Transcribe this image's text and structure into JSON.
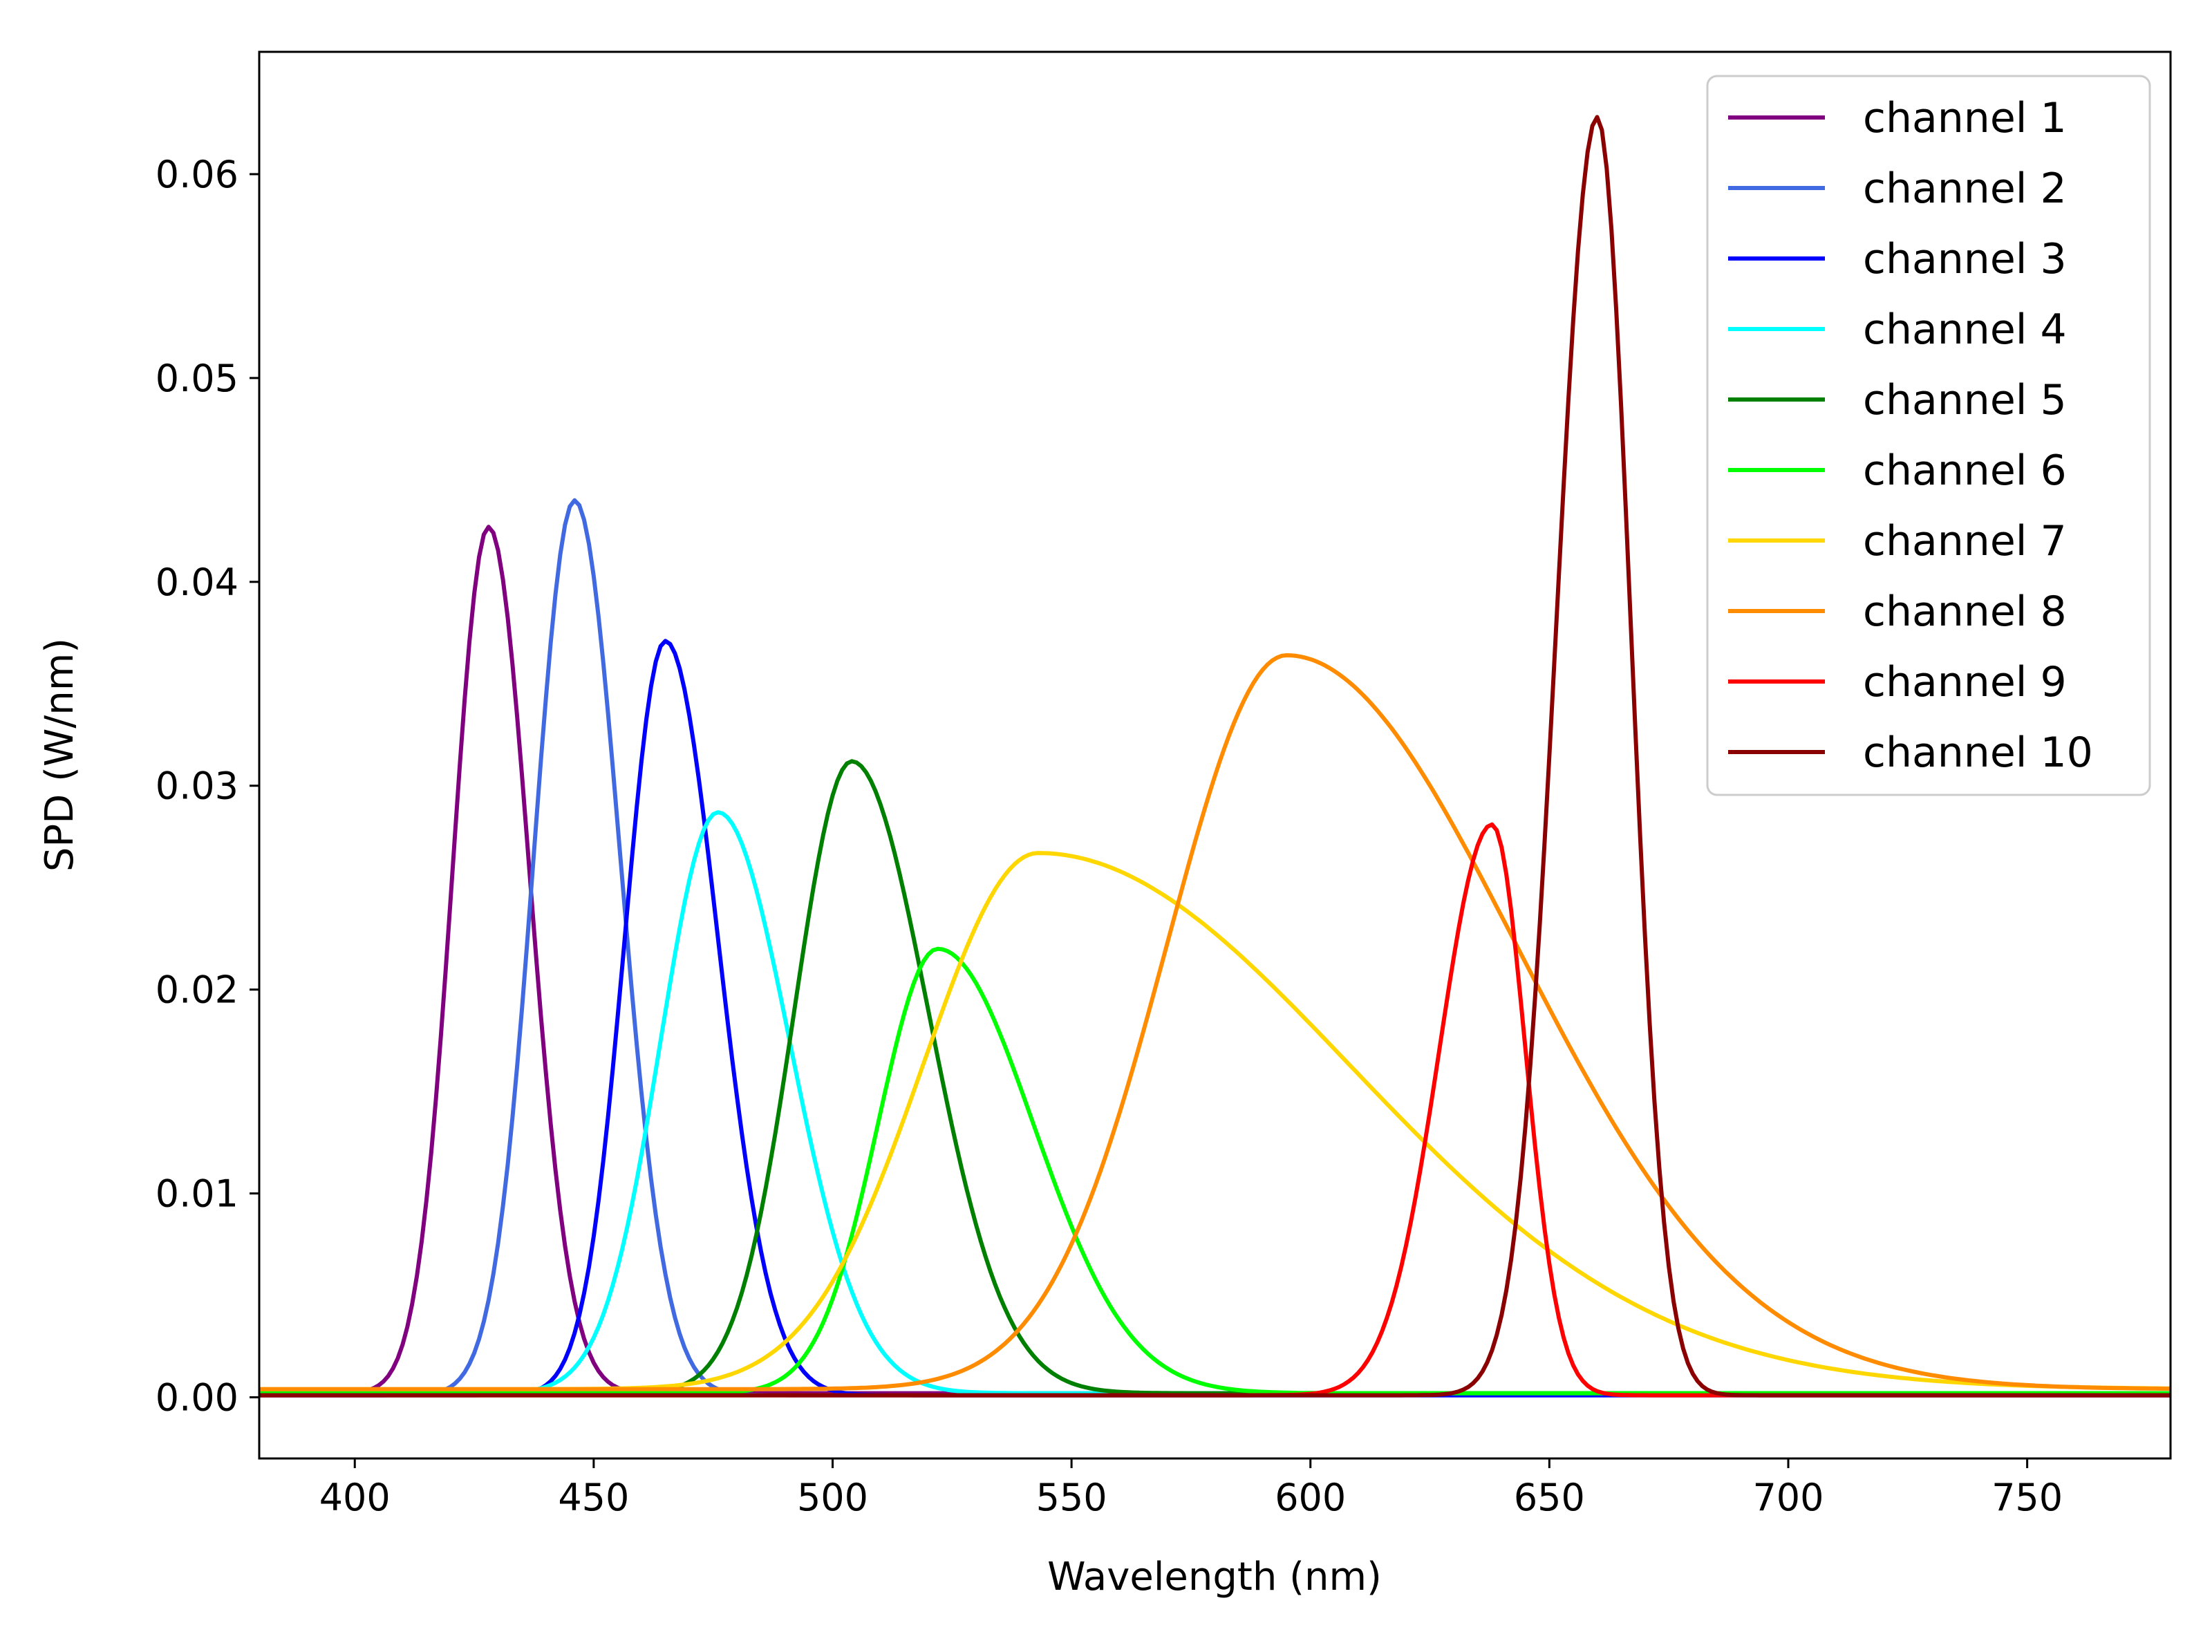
{
  "chart_data": {
    "type": "line",
    "title": "",
    "xlabel": "Wavelength (nm)",
    "ylabel": "SPD (W/nm)",
    "xlim": [
      380,
      780
    ],
    "ylim": [
      -0.003,
      0.066
    ],
    "xticks": [
      400,
      450,
      500,
      550,
      600,
      650,
      700,
      750
    ],
    "xtick_labels": [
      "400",
      "450",
      "500",
      "550",
      "600",
      "650",
      "700",
      "750"
    ],
    "yticks": [
      0.0,
      0.01,
      0.02,
      0.03,
      0.04,
      0.05,
      0.06
    ],
    "ytick_labels": [
      "0.00",
      "0.01",
      "0.02",
      "0.03",
      "0.04",
      "0.05",
      "0.06"
    ],
    "grid": false,
    "legend_position": "top-right",
    "series": [
      {
        "name": "channel 1",
        "color": "#800080",
        "peak_x": 428,
        "peak_y": 0.0425,
        "sigma_left": 7.5,
        "sigma_right": 8.5,
        "tail": 0.0002
      },
      {
        "name": "channel 2",
        "color": "#4169E1",
        "peak_x": 446,
        "peak_y": 0.0439,
        "sigma_left": 8.5,
        "sigma_right": 9.5,
        "tail": 0.0001
      },
      {
        "name": "channel 3",
        "color": "#0000FF",
        "peak_x": 465,
        "peak_y": 0.037,
        "sigma_left": 8.5,
        "sigma_right": 11,
        "tail": 0.0001
      },
      {
        "name": "channel 4",
        "color": "#00FFFF",
        "peak_x": 476,
        "peak_y": 0.0285,
        "sigma_left": 12,
        "sigma_right": 15,
        "tail": 0.0002
      },
      {
        "name": "channel 5",
        "color": "#008000",
        "peak_x": 504,
        "peak_y": 0.031,
        "sigma_left": 12,
        "sigma_right": 16,
        "tail": 0.0002
      },
      {
        "name": "channel 6",
        "color": "#00FF00",
        "peak_x": 522,
        "peak_y": 0.0218,
        "sigma_left": 12.5,
        "sigma_right": 20,
        "tail": 0.0002
      },
      {
        "name": "channel 7",
        "color": "#FFD700",
        "peak_x": 543,
        "peak_y": 0.0263,
        "sigma_left": 24,
        "sigma_right": 65,
        "tail": 0.0004
      },
      {
        "name": "channel 8",
        "color": "#FF8C00",
        "peak_x": 595,
        "peak_y": 0.036,
        "sigma_left": 25,
        "sigma_right": 48,
        "tail": 0.0004
      },
      {
        "name": "channel 9",
        "color": "#FF0000",
        "peak_x": 638,
        "peak_y": 0.028,
        "sigma_left": 11,
        "sigma_right": 7,
        "tail": 0.0001
      },
      {
        "name": "channel 10",
        "color": "#8B0000",
        "peak_x": 660,
        "peak_y": 0.0627,
        "sigma_left": 8.5,
        "sigma_right": 7,
        "tail": 0.0001
      }
    ]
  }
}
